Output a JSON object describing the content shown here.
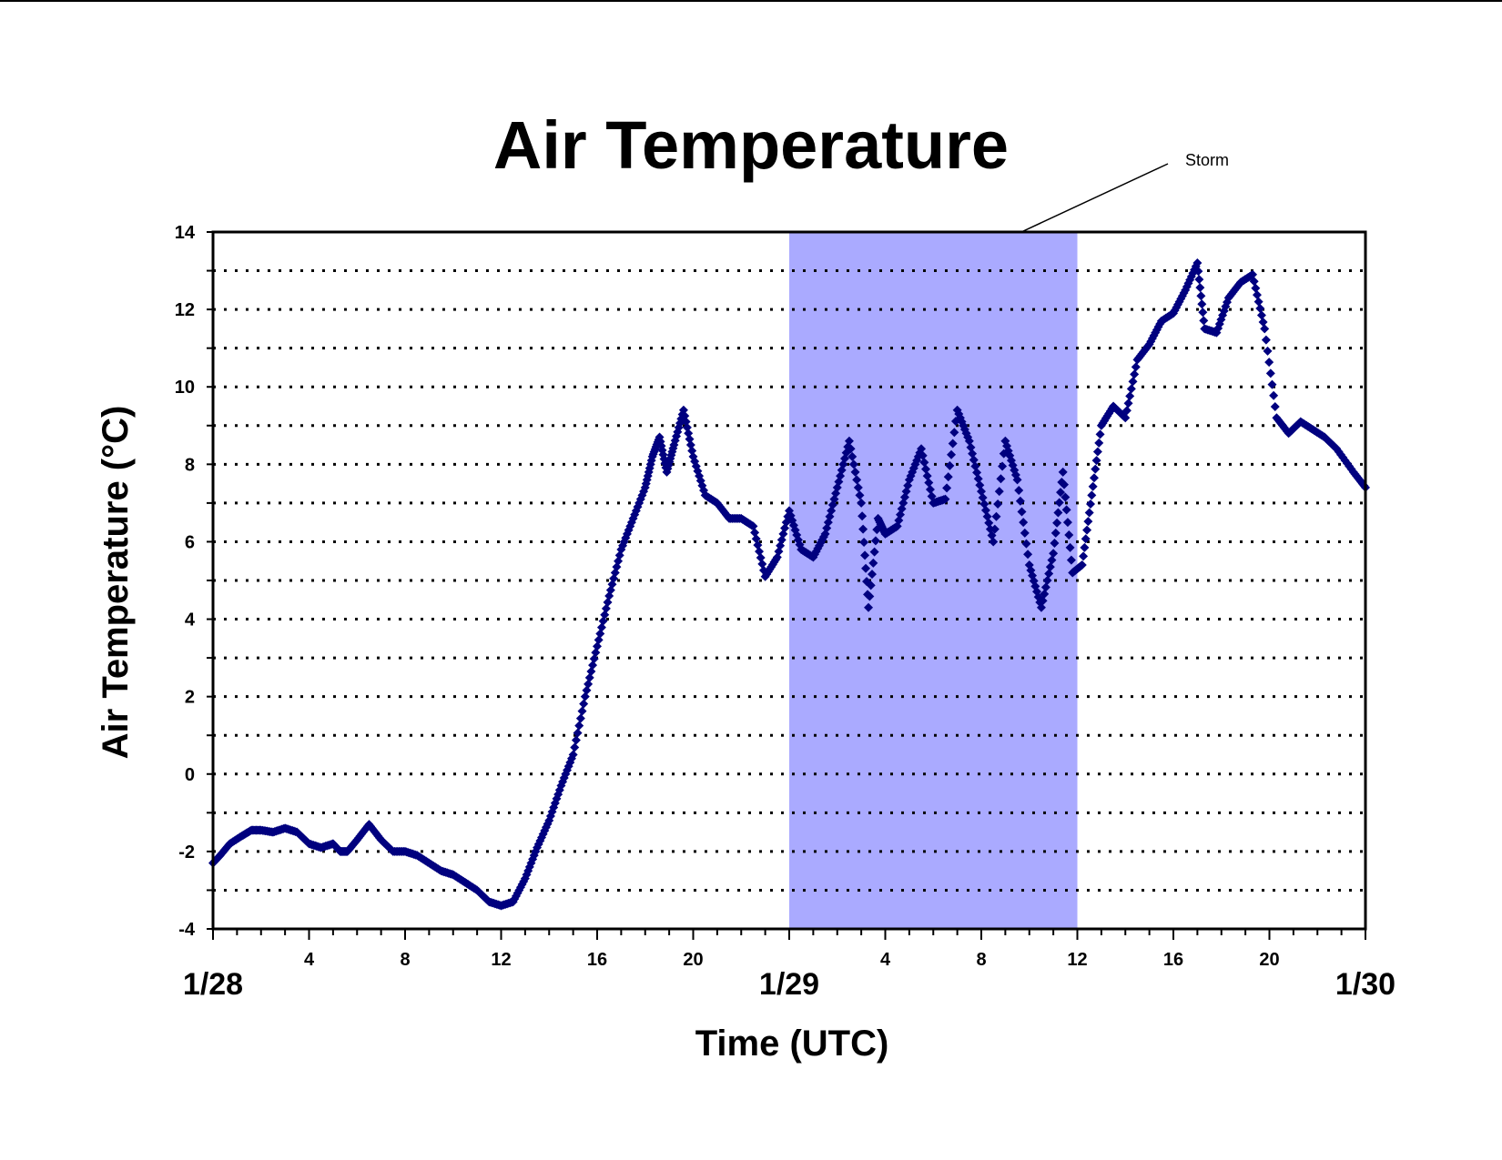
{
  "chart_data": {
    "type": "scatter",
    "title": "Air Temperature",
    "xlabel": "Time (UTC)",
    "ylabel": "Air Temperature (°C)",
    "x_unit": "hours since 1/28 00 UTC",
    "xlim": [
      0,
      48
    ],
    "ylim": [
      -4,
      14
    ],
    "y_ticks": [
      -4,
      -2,
      0,
      2,
      4,
      6,
      8,
      10,
      12,
      14
    ],
    "hour_ticks": [
      {
        "x": 4,
        "label": "4"
      },
      {
        "x": 8,
        "label": "8"
      },
      {
        "x": 12,
        "label": "12"
      },
      {
        "x": 16,
        "label": "16"
      },
      {
        "x": 20,
        "label": "20"
      },
      {
        "x": 28,
        "label": "4"
      },
      {
        "x": 32,
        "label": "8"
      },
      {
        "x": 36,
        "label": "12"
      },
      {
        "x": 40,
        "label": "16"
      },
      {
        "x": 44,
        "label": "20"
      }
    ],
    "day_labels": [
      {
        "x": 0,
        "label": "1/28"
      },
      {
        "x": 24,
        "label": "1/29"
      },
      {
        "x": 48,
        "label": "1/30"
      }
    ],
    "grid": "horizontal dotted lines every 1 °C",
    "highlight_band": {
      "label": "Storm",
      "x_start": 24,
      "x_end": 36,
      "color": "#aaaaff"
    },
    "annotation": {
      "text": "Storm"
    },
    "marker_color": "#00007f",
    "series": [
      {
        "name": "",
        "points": [
          [
            0.0,
            -2.3
          ],
          [
            0.3,
            -2.1
          ],
          [
            0.7,
            -1.8
          ],
          [
            1.2,
            -1.6
          ],
          [
            1.6,
            -1.45
          ],
          [
            2.0,
            -1.45
          ],
          [
            2.5,
            -1.5
          ],
          [
            3.0,
            -1.4
          ],
          [
            3.5,
            -1.5
          ],
          [
            4.0,
            -1.8
          ],
          [
            4.5,
            -1.9
          ],
          [
            5.0,
            -1.8
          ],
          [
            5.3,
            -2.0
          ],
          [
            5.6,
            -2.0
          ],
          [
            6.0,
            -1.7
          ],
          [
            6.5,
            -1.3
          ],
          [
            7.0,
            -1.7
          ],
          [
            7.5,
            -2.0
          ],
          [
            8.0,
            -2.0
          ],
          [
            8.5,
            -2.1
          ],
          [
            9.0,
            -2.3
          ],
          [
            9.5,
            -2.5
          ],
          [
            10.0,
            -2.6
          ],
          [
            10.5,
            -2.8
          ],
          [
            11.0,
            -3.0
          ],
          [
            11.5,
            -3.3
          ],
          [
            12.0,
            -3.4
          ],
          [
            12.5,
            -3.3
          ],
          [
            13.0,
            -2.7
          ],
          [
            13.5,
            -1.9
          ],
          [
            14.0,
            -1.2
          ],
          [
            14.5,
            -0.3
          ],
          [
            15.0,
            0.5
          ],
          [
            15.5,
            2.0
          ],
          [
            16.0,
            3.3
          ],
          [
            16.5,
            4.6
          ],
          [
            17.0,
            5.8
          ],
          [
            17.5,
            6.6
          ],
          [
            18.0,
            7.4
          ],
          [
            18.3,
            8.2
          ],
          [
            18.6,
            8.7
          ],
          [
            18.9,
            7.8
          ],
          [
            19.2,
            8.5
          ],
          [
            19.6,
            9.4
          ],
          [
            20.0,
            8.2
          ],
          [
            20.5,
            7.2
          ],
          [
            21.0,
            7.0
          ],
          [
            21.5,
            6.6
          ],
          [
            22.0,
            6.6
          ],
          [
            22.5,
            6.4
          ],
          [
            23.0,
            5.1
          ],
          [
            23.5,
            5.6
          ],
          [
            24.0,
            6.8
          ],
          [
            24.5,
            5.8
          ],
          [
            25.0,
            5.6
          ],
          [
            25.5,
            6.2
          ],
          [
            26.0,
            7.4
          ],
          [
            26.5,
            8.6
          ],
          [
            27.0,
            7.0
          ],
          [
            27.3,
            4.3
          ],
          [
            27.7,
            6.6
          ],
          [
            28.0,
            6.2
          ],
          [
            28.5,
            6.4
          ],
          [
            29.0,
            7.6
          ],
          [
            29.5,
            8.4
          ],
          [
            30.0,
            7.0
          ],
          [
            30.5,
            7.1
          ],
          [
            31.0,
            9.4
          ],
          [
            31.5,
            8.6
          ],
          [
            32.0,
            7.3
          ],
          [
            32.5,
            6.0
          ],
          [
            33.0,
            8.6
          ],
          [
            33.5,
            7.6
          ],
          [
            34.0,
            5.4
          ],
          [
            34.5,
            4.3
          ],
          [
            35.0,
            5.7
          ],
          [
            35.4,
            7.8
          ],
          [
            35.8,
            5.2
          ],
          [
            36.2,
            5.4
          ],
          [
            36.6,
            7.2
          ],
          [
            37.0,
            9.0
          ],
          [
            37.5,
            9.5
          ],
          [
            38.0,
            9.2
          ],
          [
            38.5,
            10.7
          ],
          [
            39.0,
            11.1
          ],
          [
            39.5,
            11.7
          ],
          [
            40.0,
            11.9
          ],
          [
            40.5,
            12.5
          ],
          [
            41.0,
            13.2
          ],
          [
            41.3,
            11.5
          ],
          [
            41.8,
            11.4
          ],
          [
            42.3,
            12.3
          ],
          [
            42.8,
            12.7
          ],
          [
            43.3,
            12.9
          ],
          [
            43.8,
            11.5
          ],
          [
            44.3,
            9.2
          ],
          [
            44.8,
            8.8
          ],
          [
            45.3,
            9.1
          ],
          [
            45.8,
            8.9
          ],
          [
            46.3,
            8.7
          ],
          [
            46.8,
            8.4
          ],
          [
            47.5,
            7.8
          ],
          [
            48.0,
            7.4
          ]
        ]
      }
    ]
  }
}
